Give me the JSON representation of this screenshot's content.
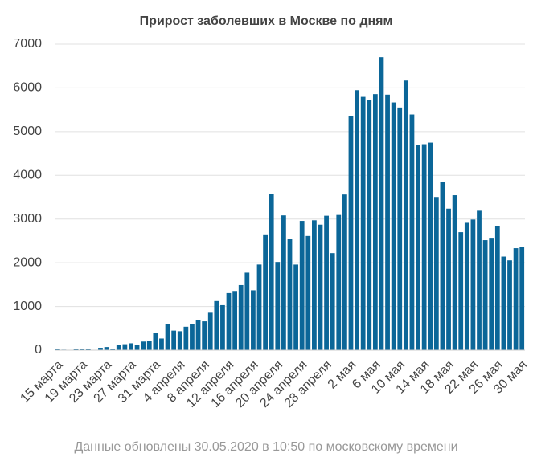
{
  "chart_data": {
    "type": "bar",
    "title": "Прирост заболевших в Москве по дням",
    "footnote": "Данные обновлены 30.05.2020 в 10:50 по московскому времени",
    "categories": [
      "15 марта",
      null,
      null,
      null,
      "19 марта",
      null,
      null,
      null,
      "23 марта",
      null,
      null,
      null,
      "27 марта",
      null,
      null,
      null,
      "31 марта",
      null,
      null,
      null,
      "4 апреля",
      null,
      null,
      null,
      "8 апреля",
      null,
      null,
      null,
      "12 апреля",
      null,
      null,
      null,
      "16 апреля",
      null,
      null,
      null,
      "20 апреля",
      null,
      null,
      null,
      "24 апреля",
      null,
      null,
      null,
      "28 апреля",
      null,
      null,
      null,
      "2 мая",
      null,
      null,
      null,
      "6 мая",
      null,
      null,
      null,
      "10 мая",
      null,
      null,
      null,
      "14 мая",
      null,
      null,
      null,
      "18 мая",
      null,
      null,
      null,
      "22 мая",
      null,
      null,
      null,
      "26 мая",
      null,
      null,
      null,
      "30 мая"
    ],
    "values": [
      24,
      12,
      0,
      29,
      20,
      33,
      6,
      54,
      71,
      28,
      120,
      136,
      157,
      114,
      197,
      212,
      387,
      267,
      595,
      448,
      434,
      536,
      591,
      697,
      660,
      857,
      1124,
      1030,
      1306,
      1355,
      1489,
      1774,
      1370,
      1959,
      2649,
      3570,
      2018,
      3083,
      2548,
      1958,
      2957,
      2612,
      2971,
      2871,
      3075,
      2220,
      3093,
      3561,
      5358,
      5948,
      5795,
      5714,
      5858,
      6703,
      5846,
      5667,
      5551,
      6169,
      5392,
      4703,
      4712,
      4748,
      3505,
      3855,
      3238,
      3545,
      2699,
      2913,
      2988,
      3190,
      2516,
      2570,
      2830,
      2140,
      2054,
      2332,
      2367
    ],
    "color": "#0b6698",
    "ylim": [
      0,
      7000
    ],
    "yticks": [
      0,
      1000,
      2000,
      3000,
      4000,
      5000,
      6000,
      7000
    ],
    "grid": true
  }
}
